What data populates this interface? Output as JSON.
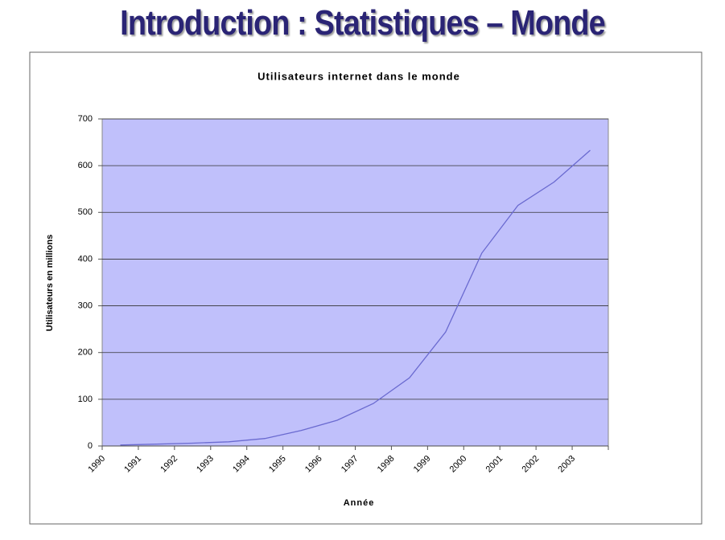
{
  "heading": "Introduction : Statistiques – Monde",
  "chart_data": {
    "type": "line",
    "title": "Utilisateurs internet dans le monde",
    "x_label": "Année",
    "y_label": "Utilisateurs en millions",
    "categories": [
      "1990",
      "1991",
      "1992",
      "1993",
      "1994",
      "1995",
      "1996",
      "1997",
      "1998",
      "1999",
      "2000",
      "2001",
      "2002",
      "2003"
    ],
    "values": [
      2,
      4,
      6,
      9,
      16,
      33,
      55,
      91,
      146,
      244,
      413,
      515,
      565,
      633
    ],
    "color": "#6a6ad0",
    "ylim": [
      0,
      700
    ],
    "yticks": [
      0,
      100,
      200,
      300,
      400,
      500,
      600,
      700
    ],
    "grid": true
  }
}
